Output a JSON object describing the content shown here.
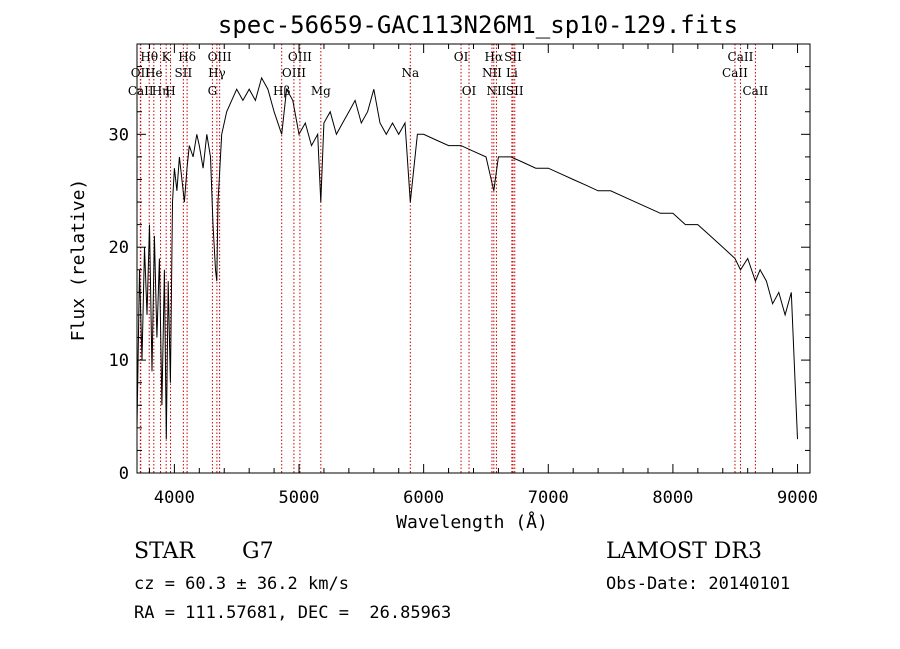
{
  "chart_data": {
    "type": "line",
    "title": "spec-56659-GAC113N26M1_sp10-129.fits",
    "xlabel": "Wavelength (Å)",
    "ylabel": "Flux (relative)",
    "xlim": [
      3700,
      9100
    ],
    "ylim": [
      0,
      38
    ],
    "xticks": [
      4000,
      5000,
      6000,
      7000,
      8000,
      9000
    ],
    "yticks": [
      0,
      10,
      20,
      30
    ],
    "grid": false,
    "series": [
      {
        "name": "spectrum",
        "x": [
          3700,
          3720,
          3740,
          3760,
          3780,
          3800,
          3820,
          3840,
          3860,
          3880,
          3900,
          3920,
          3935,
          3950,
          3968,
          3985,
          4000,
          4020,
          4040,
          4060,
          4080,
          4101,
          4120,
          4150,
          4180,
          4200,
          4230,
          4260,
          4290,
          4310,
          4330,
          4340,
          4350,
          4380,
          4420,
          4460,
          4500,
          4550,
          4600,
          4650,
          4700,
          4750,
          4800,
          4861,
          4900,
          4950,
          5000,
          5050,
          5100,
          5150,
          5175,
          5200,
          5250,
          5300,
          5350,
          5400,
          5450,
          5500,
          5550,
          5600,
          5650,
          5700,
          5750,
          5800,
          5850,
          5893,
          5950,
          6000,
          6100,
          6200,
          6300,
          6400,
          6500,
          6563,
          6600,
          6700,
          6800,
          6900,
          7000,
          7100,
          7200,
          7300,
          7400,
          7500,
          7600,
          7700,
          7800,
          7900,
          8000,
          8100,
          8200,
          8300,
          8400,
          8498,
          8542,
          8600,
          8662,
          8700,
          8750,
          8800,
          8850,
          8900,
          8950,
          9000
        ],
        "y": [
          4,
          18,
          10,
          20,
          14,
          22,
          9,
          21,
          12,
          19,
          6,
          18,
          3,
          17,
          8,
          24,
          27,
          25,
          28,
          26,
          24,
          27,
          29,
          28,
          30,
          29,
          27,
          30,
          28,
          22,
          18,
          17,
          24,
          30,
          32,
          33,
          34,
          33,
          34,
          33,
          35,
          34,
          32,
          30,
          34,
          33,
          30,
          31,
          29,
          30,
          24,
          31,
          32,
          30,
          31,
          32,
          33,
          31,
          32,
          34,
          31,
          30,
          31,
          30,
          31,
          24,
          30,
          30,
          29.5,
          29,
          29,
          28.5,
          28,
          25,
          28,
          28,
          27.5,
          27,
          27,
          26.5,
          26,
          25.5,
          25,
          25,
          24.5,
          24,
          23.5,
          23,
          23,
          22,
          22,
          21,
          20,
          19,
          18,
          19,
          17,
          18,
          17,
          15,
          16,
          14,
          16,
          3
        ]
      }
    ],
    "line_markers": [
      {
        "label": "Hθ",
        "x": 3798,
        "row": 1
      },
      {
        "label": "OII",
        "x": 3727,
        "row": 2
      },
      {
        "label": "CaII",
        "x": 3730,
        "row": 3
      },
      {
        "label": "He",
        "x": 3835,
        "row": 2
      },
      {
        "label": "Hη",
        "x": 3889,
        "row": 3
      },
      {
        "label": "K",
        "x": 3934,
        "row": 1
      },
      {
        "label": "H",
        "x": 3969,
        "row": 3
      },
      {
        "label": "SII",
        "x": 4072,
        "row": 2
      },
      {
        "label": "Hδ",
        "x": 4102,
        "row": 1
      },
      {
        "label": "G",
        "x": 4305,
        "row": 3
      },
      {
        "label": "OIII",
        "x": 4363,
        "row": 1
      },
      {
        "label": "Hγ",
        "x": 4341,
        "row": 2
      },
      {
        "label": "Hβ",
        "x": 4861,
        "row": 3
      },
      {
        "label": "OIII",
        "x": 4959,
        "row": 2
      },
      {
        "label": "OIII",
        "x": 5007,
        "row": 1
      },
      {
        "label": "Mg",
        "x": 5175,
        "row": 3
      },
      {
        "label": "Na",
        "x": 5893,
        "row": 2
      },
      {
        "label": "OI",
        "x": 6300,
        "row": 1
      },
      {
        "label": "OI",
        "x": 6364,
        "row": 3
      },
      {
        "label": "Hα",
        "x": 6563,
        "row": 1
      },
      {
        "label": "NII",
        "x": 6548,
        "row": 2
      },
      {
        "label": "NII",
        "x": 6584,
        "row": 3
      },
      {
        "label": "SII",
        "x": 6717,
        "row": 1
      },
      {
        "label": "Li",
        "x": 6708,
        "row": 2
      },
      {
        "label": "SII",
        "x": 6731,
        "row": 3
      },
      {
        "label": "CaII",
        "x": 8542,
        "row": 1
      },
      {
        "label": "CaII",
        "x": 8498,
        "row": 2
      },
      {
        "label": "CaII",
        "x": 8662,
        "row": 3
      }
    ]
  },
  "info": {
    "class_label": "STAR",
    "subclass": "G7",
    "survey": "LAMOST DR3",
    "redshift": "cz = 60.3 ± 36.2 km/s",
    "obs_date": "Obs-Date: 20140101",
    "coords": "RA = 111.57681, DEC =  26.85963"
  },
  "colors": {
    "spectrum": "#000000",
    "marker": "#cc0000"
  }
}
